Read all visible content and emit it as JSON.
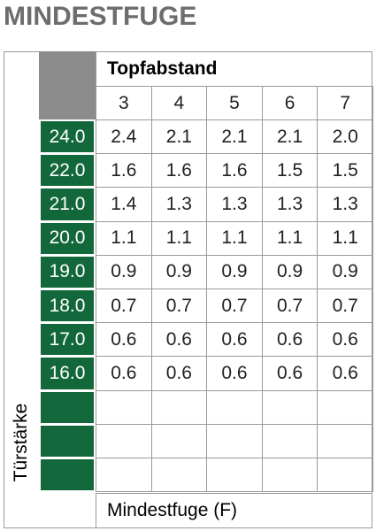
{
  "title": "MINDESTFUGE",
  "table": {
    "side_label": "Türstärke",
    "column_group": "Topfabstand",
    "columns": [
      "3",
      "4",
      "5",
      "6",
      "7"
    ],
    "rows": [
      {
        "label": "24.0",
        "cells": [
          "2.4",
          "2.1",
          "2.1",
          "2.1",
          "2.0"
        ]
      },
      {
        "label": "22.0",
        "cells": [
          "1.6",
          "1.6",
          "1.6",
          "1.5",
          "1.5"
        ]
      },
      {
        "label": "21.0",
        "cells": [
          "1.4",
          "1.3",
          "1.3",
          "1.3",
          "1.3"
        ]
      },
      {
        "label": "20.0",
        "cells": [
          "1.1",
          "1.1",
          "1.1",
          "1.1",
          "1.1"
        ]
      },
      {
        "label": "19.0",
        "cells": [
          "0.9",
          "0.9",
          "0.9",
          "0.9",
          "0.9"
        ]
      },
      {
        "label": "18.0",
        "cells": [
          "0.7",
          "0.7",
          "0.7",
          "0.7",
          "0.7"
        ]
      },
      {
        "label": "17.0",
        "cells": [
          "0.6",
          "0.6",
          "0.6",
          "0.6",
          "0.6"
        ]
      },
      {
        "label": "16.0",
        "cells": [
          "0.6",
          "0.6",
          "0.6",
          "0.6",
          "0.6"
        ]
      }
    ],
    "footer": "Mindestfuge (F)"
  }
}
